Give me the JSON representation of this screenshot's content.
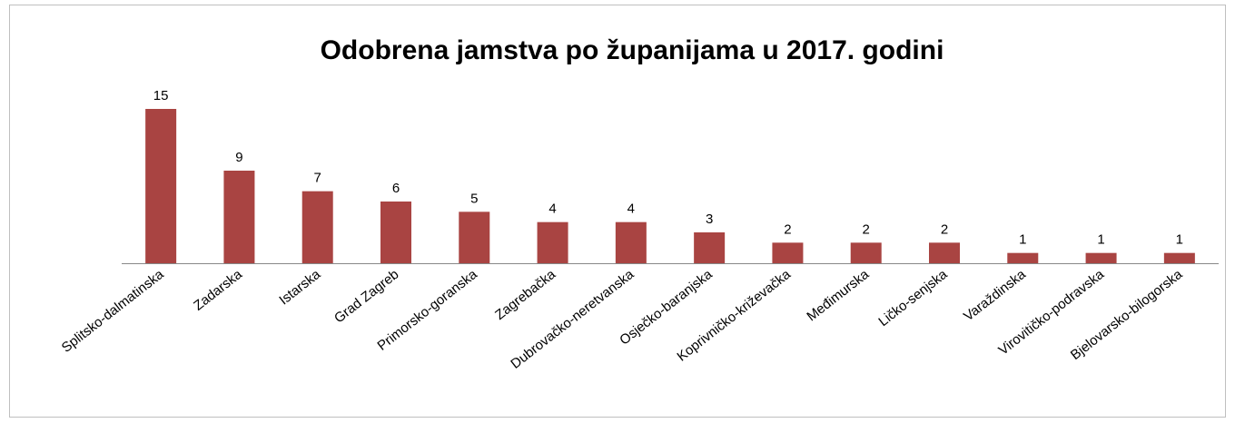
{
  "chart_data": {
    "type": "bar",
    "title": "Odobrena jamstva po županijama u 2017. godini",
    "categories": [
      "Splitsko-dalmatinska",
      "Zadarska",
      "Istarska",
      "Grad Zagreb",
      "Primorsko-goranska",
      "Zagrebačka",
      "Dubrovačko-neretvanska",
      "Osječko-baranjska",
      "Koprivničko-križevačka",
      "Međimurska",
      "Ličko-senjska",
      "Varaždinska",
      "Virovitičko-podravska",
      "Bjelovarsko-bilogorska"
    ],
    "values": [
      15,
      9,
      7,
      6,
      5,
      4,
      4,
      3,
      2,
      2,
      2,
      1,
      1,
      1
    ],
    "color": "#a94442"
  }
}
